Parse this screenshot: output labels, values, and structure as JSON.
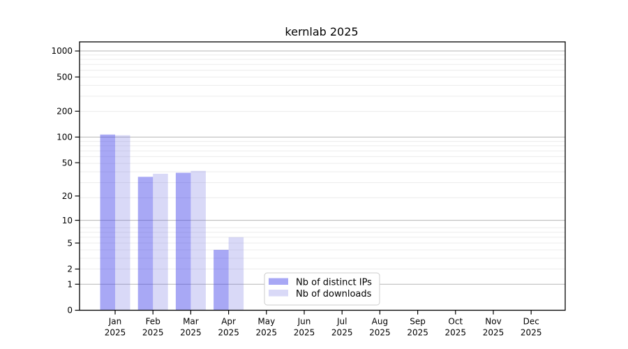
{
  "chart_data": {
    "type": "bar",
    "title": "kernlab 2025",
    "categories": [
      "Jan",
      "Feb",
      "Mar",
      "Apr",
      "May",
      "Jun",
      "Jul",
      "Aug",
      "Sep",
      "Oct",
      "Nov",
      "Dec"
    ],
    "x_year_label": "2025",
    "series": [
      {
        "name": "Nb of distinct IPs",
        "fill": "rgba(62,62,233,0.45)",
        "apparent_color": "#a8a8f5",
        "values": [
          107,
          34,
          38,
          4,
          0,
          0,
          0,
          0,
          0,
          0,
          0,
          0
        ]
      },
      {
        "name": "Nb of downloads",
        "fill": "rgba(103,103,223,0.25)",
        "apparent_color": "#d9d9f7",
        "values": [
          105,
          37,
          40,
          6,
          0,
          0,
          0,
          0,
          0,
          0,
          0,
          0
        ]
      }
    ],
    "y_ticks": [
      0,
      1,
      2,
      5,
      10,
      20,
      50,
      100,
      200,
      500,
      1000
    ],
    "y_major_gridlines": [
      1,
      10,
      100,
      1000
    ],
    "y_scale": "log10(value+1)",
    "ylim": [
      0,
      1000
    ],
    "grid": "horizontal",
    "legend_position": "bottom-center-inside"
  },
  "colors": {
    "background": "#ffffff",
    "axis": "#000000",
    "grid_major": "#b6b6b6",
    "grid_minor": "#ececec",
    "legend_border": "#cccccc",
    "legend_background": "#ffffff",
    "text": "#000000"
  }
}
